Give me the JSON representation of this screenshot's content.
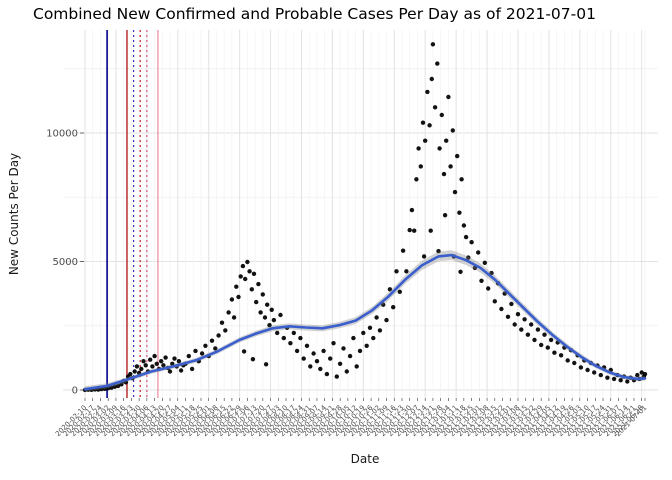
{
  "chart_data": {
    "type": "scatter",
    "title": "Combined New Confirmed and Probable Cases Per Day as of 2021-07-01",
    "xlabel": "Date",
    "ylabel": "New Counts Per Day",
    "x_start_date": "2020-02-10",
    "x_end_date": "2021-07-01",
    "xlim_days": [
      0,
      507
    ],
    "ylim": [
      0,
      13900
    ],
    "y_ticks": [
      0,
      5000,
      10000
    ],
    "y_minor_ticks": [
      2500,
      7500,
      12500
    ],
    "grid": "on",
    "legend": "none",
    "colors": {
      "point": "#000000",
      "smooth_line": "#3a5fcd",
      "ci_band": "rgba(125,125,125,0.35)",
      "grid_major": "#e2e2e2",
      "grid_minor": "#f2f2f2",
      "axis_text": "#4d4d4d",
      "tick_mark": "#333333",
      "title": "#000000"
    },
    "event_lines": [
      {
        "day": 20,
        "color": "#00008b",
        "style": "solid",
        "width": 1.6
      },
      {
        "day": 38,
        "color": "#b22222",
        "style": "solid",
        "width": 1.4
      },
      {
        "day": 44,
        "color": "#3333cc",
        "style": "dotted",
        "width": 1.2
      },
      {
        "day": 50,
        "color": "#cc2222",
        "style": "dotted",
        "width": 1.2
      },
      {
        "day": 56,
        "color": "#dd5577",
        "style": "dotted",
        "width": 1.2
      },
      {
        "day": 66,
        "color": "#ee99aa",
        "style": "solid",
        "width": 1.4
      }
    ],
    "x_tick_labels": [
      [
        0,
        "2020-02-10"
      ],
      [
        7,
        "2020-02-17"
      ],
      [
        14,
        "2020-02-24"
      ],
      [
        21,
        "2020-03-02"
      ],
      [
        28,
        "2020-03-09"
      ],
      [
        35,
        "2020-03-16"
      ],
      [
        42,
        "2020-03-23"
      ],
      [
        49,
        "2020-03-30"
      ],
      [
        56,
        "2020-04-06"
      ],
      [
        63,
        "2020-04-13"
      ],
      [
        70,
        "2020-04-20"
      ],
      [
        77,
        "2020-04-27"
      ],
      [
        84,
        "2020-05-04"
      ],
      [
        91,
        "2020-05-11"
      ],
      [
        98,
        "2020-05-18"
      ],
      [
        105,
        "2020-05-25"
      ],
      [
        112,
        "2020-06-01"
      ],
      [
        119,
        "2020-06-08"
      ],
      [
        126,
        "2020-06-15"
      ],
      [
        133,
        "2020-06-22"
      ],
      [
        140,
        "2020-06-29"
      ],
      [
        147,
        "2020-07-06"
      ],
      [
        154,
        "2020-07-13"
      ],
      [
        161,
        "2020-07-20"
      ],
      [
        168,
        "2020-07-27"
      ],
      [
        175,
        "2020-08-03"
      ],
      [
        182,
        "2020-08-10"
      ],
      [
        189,
        "2020-08-17"
      ],
      [
        196,
        "2020-08-24"
      ],
      [
        203,
        "2020-08-31"
      ],
      [
        210,
        "2020-09-07"
      ],
      [
        217,
        "2020-09-14"
      ],
      [
        224,
        "2020-09-21"
      ],
      [
        231,
        "2020-09-28"
      ],
      [
        238,
        "2020-10-05"
      ],
      [
        245,
        "2020-10-12"
      ],
      [
        252,
        "2020-10-19"
      ],
      [
        259,
        "2020-10-26"
      ],
      [
        266,
        "2020-11-02"
      ],
      [
        273,
        "2020-11-09"
      ],
      [
        280,
        "2020-11-16"
      ],
      [
        287,
        "2020-11-23"
      ],
      [
        294,
        "2020-11-30"
      ],
      [
        301,
        "2020-12-07"
      ],
      [
        308,
        "2020-12-14"
      ],
      [
        315,
        "2020-12-21"
      ],
      [
        322,
        "2020-12-28"
      ],
      [
        329,
        "2021-01-04"
      ],
      [
        336,
        "2021-01-11"
      ],
      [
        343,
        "2021-01-18"
      ],
      [
        350,
        "2021-01-25"
      ],
      [
        357,
        "2021-02-01"
      ],
      [
        364,
        "2021-02-08"
      ],
      [
        371,
        "2021-02-15"
      ],
      [
        378,
        "2021-02-22"
      ],
      [
        385,
        "2021-03-01"
      ],
      [
        392,
        "2021-03-08"
      ],
      [
        399,
        "2021-03-15"
      ],
      [
        406,
        "2021-03-22"
      ],
      [
        413,
        "2021-03-29"
      ],
      [
        420,
        "2021-04-05"
      ],
      [
        427,
        "2021-04-12"
      ],
      [
        434,
        "2021-04-19"
      ],
      [
        441,
        "2021-04-26"
      ],
      [
        448,
        "2021-05-03"
      ],
      [
        455,
        "2021-05-10"
      ],
      [
        462,
        "2021-05-17"
      ],
      [
        469,
        "2021-05-24"
      ],
      [
        476,
        "2021-05-31"
      ],
      [
        483,
        "2021-06-07"
      ],
      [
        490,
        "2021-06-14"
      ],
      [
        497,
        "2021-06-21"
      ],
      [
        504,
        "2021-06-28"
      ],
      [
        507,
        "2021-07-01"
      ]
    ],
    "points_day_value": [
      [
        0,
        5
      ],
      [
        3,
        12
      ],
      [
        6,
        8
      ],
      [
        9,
        22
      ],
      [
        12,
        15
      ],
      [
        15,
        35
      ],
      [
        18,
        45
      ],
      [
        21,
        70
      ],
      [
        24,
        90
      ],
      [
        27,
        130
      ],
      [
        30,
        160
      ],
      [
        33,
        220
      ],
      [
        35,
        350
      ],
      [
        37,
        300
      ],
      [
        39,
        520
      ],
      [
        41,
        620
      ],
      [
        43,
        460
      ],
      [
        45,
        720
      ],
      [
        47,
        920
      ],
      [
        49,
        660
      ],
      [
        51,
        820
      ],
      [
        53,
        1120
      ],
      [
        55,
        960
      ],
      [
        57,
        720
      ],
      [
        59,
        1180
      ],
      [
        61,
        920
      ],
      [
        63,
        1320
      ],
      [
        65,
        1020
      ],
      [
        67,
        820
      ],
      [
        69,
        1120
      ],
      [
        71,
        960
      ],
      [
        73,
        1260
      ],
      [
        75,
        860
      ],
      [
        77,
        720
      ],
      [
        79,
        1020
      ],
      [
        81,
        1220
      ],
      [
        83,
        920
      ],
      [
        85,
        1120
      ],
      [
        87,
        760
      ],
      [
        89,
        960
      ],
      [
        91,
        1020
      ],
      [
        94,
        1320
      ],
      [
        97,
        820
      ],
      [
        100,
        1520
      ],
      [
        103,
        1120
      ],
      [
        106,
        1420
      ],
      [
        109,
        1720
      ],
      [
        112,
        1320
      ],
      [
        115,
        1920
      ],
      [
        118,
        1620
      ],
      [
        121,
        2120
      ],
      [
        124,
        2620
      ],
      [
        127,
        2320
      ],
      [
        130,
        3020
      ],
      [
        133,
        3520
      ],
      [
        135,
        2820
      ],
      [
        137,
        4020
      ],
      [
        139,
        3620
      ],
      [
        141,
        4420
      ],
      [
        143,
        4820
      ],
      [
        144,
        1500
      ],
      [
        145,
        4320
      ],
      [
        147,
        4980
      ],
      [
        149,
        4620
      ],
      [
        151,
        3920
      ],
      [
        152,
        1200
      ],
      [
        153,
        4520
      ],
      [
        155,
        3420
      ],
      [
        157,
        4120
      ],
      [
        159,
        3020
      ],
      [
        161,
        3720
      ],
      [
        163,
        2820
      ],
      [
        164,
        1000
      ],
      [
        165,
        3320
      ],
      [
        167,
        2520
      ],
      [
        169,
        3120
      ],
      [
        171,
        2720
      ],
      [
        174,
        2220
      ],
      [
        177,
        2920
      ],
      [
        180,
        2020
      ],
      [
        183,
        2420
      ],
      [
        186,
        1820
      ],
      [
        189,
        2220
      ],
      [
        192,
        1520
      ],
      [
        195,
        2020
      ],
      [
        198,
        1220
      ],
      [
        201,
        1720
      ],
      [
        204,
        920
      ],
      [
        207,
        1420
      ],
      [
        210,
        1120
      ],
      [
        213,
        820
      ],
      [
        216,
        1520
      ],
      [
        219,
        620
      ],
      [
        222,
        1220
      ],
      [
        225,
        1820
      ],
      [
        228,
        520
      ],
      [
        231,
        1020
      ],
      [
        234,
        1620
      ],
      [
        237,
        720
      ],
      [
        240,
        1320
      ],
      [
        243,
        2020
      ],
      [
        246,
        920
      ],
      [
        249,
        1520
      ],
      [
        252,
        2220
      ],
      [
        255,
        1720
      ],
      [
        258,
        2420
      ],
      [
        261,
        2020
      ],
      [
        264,
        2820
      ],
      [
        267,
        2320
      ],
      [
        270,
        3320
      ],
      [
        273,
        2720
      ],
      [
        276,
        3920
      ],
      [
        279,
        3220
      ],
      [
        282,
        4620
      ],
      [
        285,
        3820
      ],
      [
        288,
        5420
      ],
      [
        291,
        4620
      ],
      [
        294,
        6220
      ],
      [
        296,
        7000
      ],
      [
        298,
        6200
      ],
      [
        300,
        8200
      ],
      [
        302,
        9400
      ],
      [
        304,
        8700
      ],
      [
        306,
        10400
      ],
      [
        307,
        5200
      ],
      [
        308,
        9700
      ],
      [
        310,
        11600
      ],
      [
        312,
        10300
      ],
      [
        313,
        6200
      ],
      [
        314,
        12100
      ],
      [
        315,
        13450
      ],
      [
        317,
        11000
      ],
      [
        319,
        12700
      ],
      [
        320,
        5400
      ],
      [
        321,
        9400
      ],
      [
        323,
        10700
      ],
      [
        325,
        8400
      ],
      [
        326,
        6800
      ],
      [
        327,
        9700
      ],
      [
        329,
        11400
      ],
      [
        331,
        8700
      ],
      [
        333,
        10100
      ],
      [
        334,
        5200
      ],
      [
        335,
        7700
      ],
      [
        337,
        9100
      ],
      [
        339,
        6900
      ],
      [
        340,
        4600
      ],
      [
        341,
        8200
      ],
      [
        343,
        6400
      ],
      [
        345,
        5950
      ],
      [
        347,
        5150
      ],
      [
        350,
        5750
      ],
      [
        353,
        4750
      ],
      [
        356,
        5350
      ],
      [
        359,
        4250
      ],
      [
        362,
        4950
      ],
      [
        365,
        3950
      ],
      [
        368,
        4550
      ],
      [
        371,
        3450
      ],
      [
        374,
        4150
      ],
      [
        377,
        3150
      ],
      [
        380,
        3750
      ],
      [
        383,
        2850
      ],
      [
        386,
        3350
      ],
      [
        389,
        2550
      ],
      [
        392,
        2950
      ],
      [
        395,
        2350
      ],
      [
        398,
        2750
      ],
      [
        401,
        2150
      ],
      [
        404,
        2550
      ],
      [
        407,
        1950
      ],
      [
        410,
        2350
      ],
      [
        413,
        1750
      ],
      [
        416,
        2150
      ],
      [
        419,
        1650
      ],
      [
        422,
        1950
      ],
      [
        425,
        1450
      ],
      [
        428,
        1850
      ],
      [
        431,
        1350
      ],
      [
        434,
        1650
      ],
      [
        437,
        1150
      ],
      [
        440,
        1550
      ],
      [
        443,
        1050
      ],
      [
        446,
        1350
      ],
      [
        449,
        880
      ],
      [
        452,
        1150
      ],
      [
        455,
        780
      ],
      [
        458,
        1050
      ],
      [
        461,
        680
      ],
      [
        464,
        950
      ],
      [
        467,
        580
      ],
      [
        470,
        880
      ],
      [
        473,
        480
      ],
      [
        476,
        780
      ],
      [
        479,
        430
      ],
      [
        482,
        580
      ],
      [
        485,
        380
      ],
      [
        488,
        520
      ],
      [
        491,
        330
      ],
      [
        494,
        480
      ],
      [
        497,
        380
      ],
      [
        500,
        580
      ],
      [
        502,
        430
      ],
      [
        504,
        680
      ],
      [
        506,
        520
      ],
      [
        507,
        620
      ]
    ],
    "smooth_day_value_ci": [
      [
        0,
        30,
        120
      ],
      [
        20,
        160,
        100
      ],
      [
        40,
        430,
        90
      ],
      [
        60,
        720,
        85
      ],
      [
        80,
        920,
        85
      ],
      [
        100,
        1150,
        90
      ],
      [
        120,
        1500,
        95
      ],
      [
        140,
        1950,
        100
      ],
      [
        155,
        2200,
        110
      ],
      [
        170,
        2400,
        115
      ],
      [
        185,
        2480,
        120
      ],
      [
        200,
        2430,
        120
      ],
      [
        215,
        2400,
        120
      ],
      [
        230,
        2520,
        125
      ],
      [
        245,
        2700,
        130
      ],
      [
        260,
        3100,
        140
      ],
      [
        275,
        3650,
        150
      ],
      [
        290,
        4300,
        165
      ],
      [
        305,
        4850,
        180
      ],
      [
        320,
        5200,
        190
      ],
      [
        332,
        5250,
        190
      ],
      [
        345,
        5050,
        185
      ],
      [
        358,
        4750,
        175
      ],
      [
        371,
        4300,
        165
      ],
      [
        384,
        3750,
        155
      ],
      [
        397,
        3200,
        145
      ],
      [
        410,
        2650,
        135
      ],
      [
        423,
        2150,
        125
      ],
      [
        436,
        1700,
        115
      ],
      [
        449,
        1300,
        105
      ],
      [
        462,
        950,
        95
      ],
      [
        475,
        680,
        90
      ],
      [
        488,
        500,
        85
      ],
      [
        500,
        430,
        85
      ],
      [
        507,
        450,
        90
      ]
    ]
  }
}
